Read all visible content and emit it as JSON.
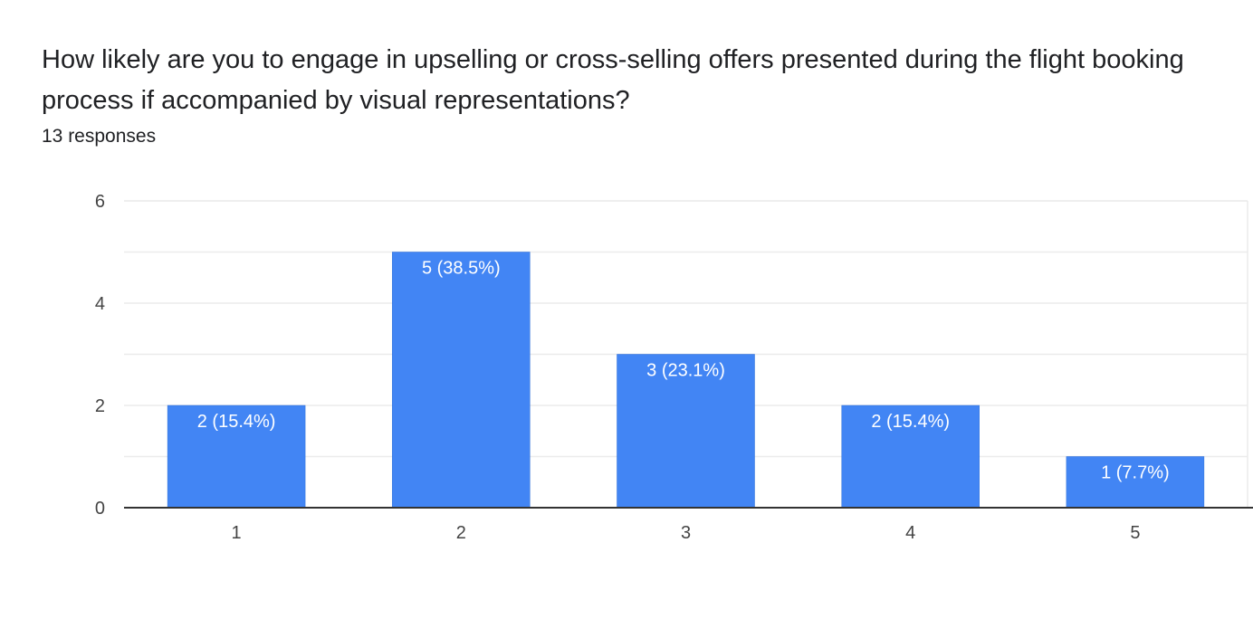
{
  "question": {
    "title": "How likely are you to engage in upselling or cross-selling offers presented during the flight booking process if accompanied by visual representations?",
    "responses": "13 responses"
  },
  "colors": {
    "bar": "#4285f4",
    "gridline": "#ebebeb",
    "axis": "#333333"
  },
  "chart_data": {
    "type": "bar",
    "title": "",
    "xlabel": "",
    "ylabel": "",
    "categories": [
      "1",
      "2",
      "3",
      "4",
      "5"
    ],
    "values": [
      2,
      5,
      3,
      2,
      1
    ],
    "data_labels": [
      "2 (15.4%)",
      "5 (38.5%)",
      "3 (23.1%)",
      "2 (15.4%)",
      "1 (7.7%)"
    ],
    "ylim": [
      0,
      6
    ],
    "yticks": [
      0,
      2,
      4,
      6
    ],
    "grid": true,
    "legend": "none"
  }
}
